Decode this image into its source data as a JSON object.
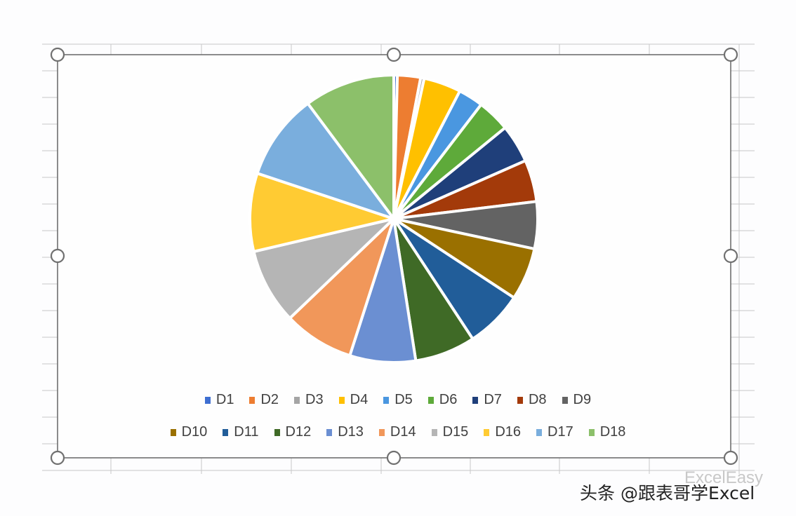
{
  "chart_data": {
    "type": "pie",
    "title": "",
    "legend_position": "bottom",
    "categories": [
      "D1",
      "D2",
      "D3",
      "D4",
      "D5",
      "D6",
      "D7",
      "D8",
      "D9",
      "D10",
      "D11",
      "D12",
      "D13",
      "D14",
      "D15",
      "D16",
      "D17",
      "D18"
    ],
    "values": [
      0.4,
      2.6,
      0.4,
      4.2,
      2.8,
      3.7,
      4.3,
      4.7,
      5.3,
      5.9,
      6.5,
      6.8,
      7.4,
      7.9,
      8.5,
      8.8,
      9.7,
      10.2
    ],
    "colors": [
      "#3f6fd1",
      "#ed7d31",
      "#a5a5a5",
      "#ffc000",
      "#4a97e0",
      "#5eaa3a",
      "#1f3f7a",
      "#a33a0a",
      "#636363",
      "#9a7000",
      "#215d99",
      "#3f6a26",
      "#6b8fd2",
      "#f1975a",
      "#b5b5b5",
      "#ffcb33",
      "#7aaedd",
      "#8cc06a"
    ]
  },
  "watermark": {
    "text": "头条 @跟表哥学Excel",
    "faint_text": "ExcelEasy"
  }
}
